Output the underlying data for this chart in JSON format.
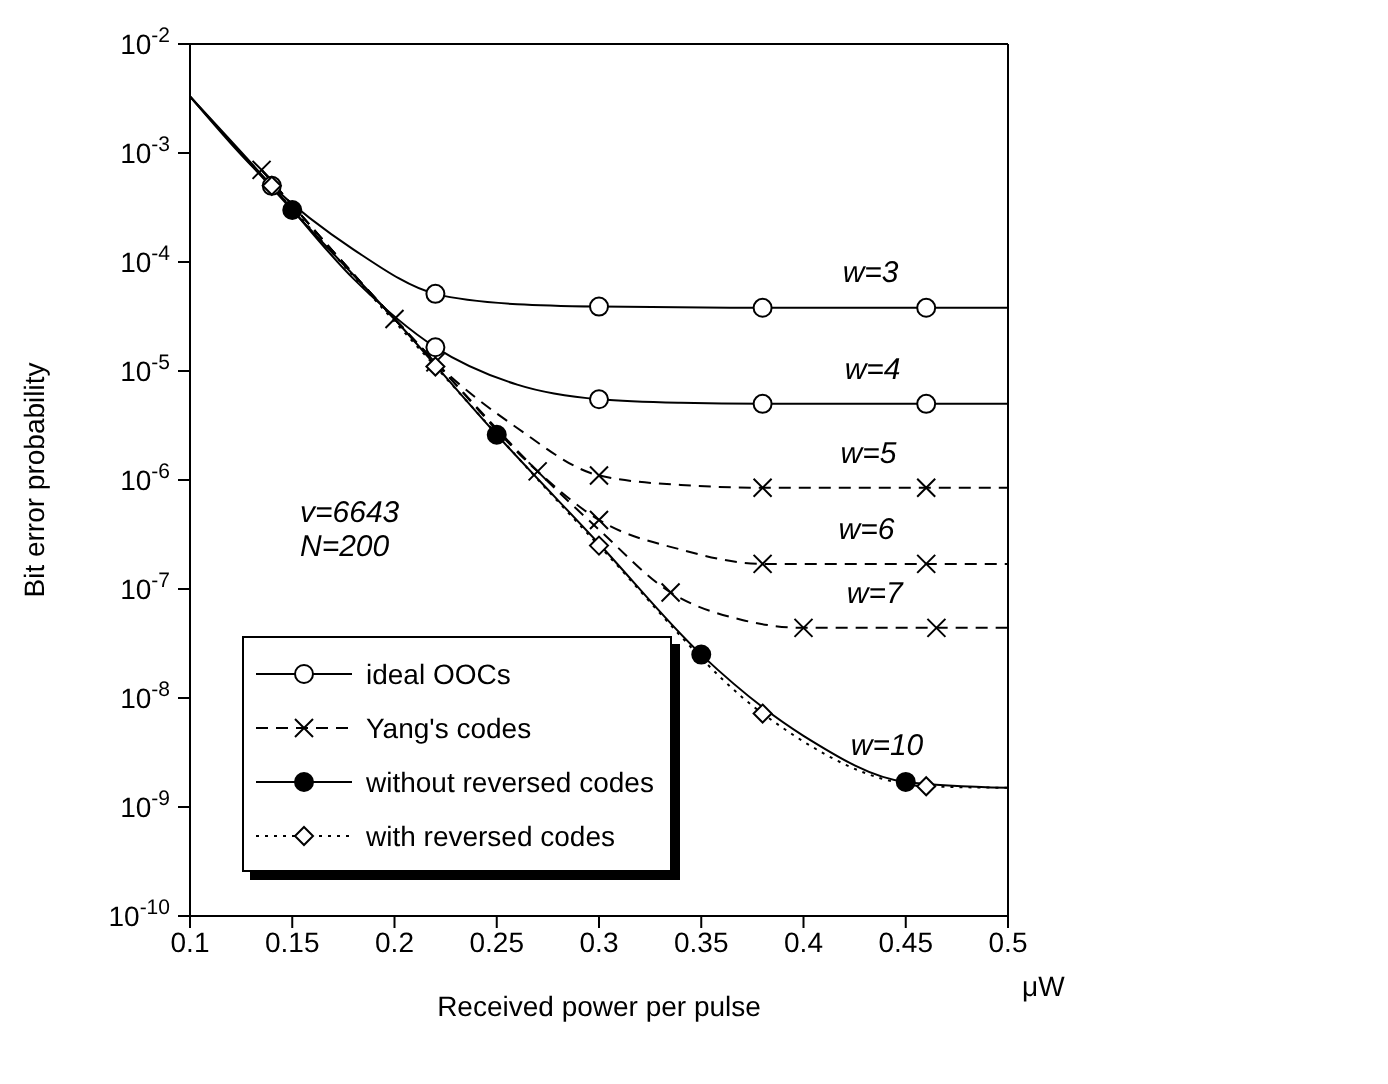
{
  "chart_data": {
    "type": "line",
    "xlabel": "Received power per pulse",
    "ylabel": "Bit error probability",
    "xlim": [
      0.1,
      0.5
    ],
    "xticks": [
      0.1,
      0.15,
      0.2,
      0.25,
      0.3,
      0.35,
      0.4,
      0.45,
      0.5
    ],
    "ylim": [
      1e-10,
      0.01
    ],
    "yticks": [
      {
        "value": 0.01,
        "label": "10$^{-2}$"
      },
      {
        "value": 0.001,
        "label": "10$^{-3}$"
      },
      {
        "value": 0.0001,
        "label": "10$^{-4}$"
      },
      {
        "value": 1e-05,
        "label": "10$^{-5}$"
      },
      {
        "value": 1e-06,
        "label": "10$^{-6}$"
      },
      {
        "value": 1e-07,
        "label": "10$^{-7}$"
      },
      {
        "value": 1e-08,
        "label": "10$^{-8}$"
      },
      {
        "value": 1e-09,
        "label": "10$^{-9}$"
      },
      {
        "value": 1e-10,
        "label": "10$^{-10}$"
      }
    ],
    "log": "y",
    "grid": false,
    "legend": "bottom left",
    "series": [
      {
        "name": "ideal OOCs",
        "color": "#000000",
        "line_style": "solid",
        "x": [
          0.1,
          0.14,
          0.18,
          0.22,
          0.26,
          0.3,
          0.38,
          0.46,
          0.5
        ],
        "values": [
          0.0033,
          0.0005,
          0.00013,
          5.1e-05,
          4.1e-05,
          3.9e-05,
          3.8e-05,
          3.8e-05,
          3.8e-05
        ]
      },
      {
        "color": "#000000",
        "line_style": "solid",
        "x": [
          0.1,
          0.14,
          0.18,
          0.22,
          0.26,
          0.3,
          0.34,
          0.38,
          0.46,
          0.5
        ],
        "values": [
          0.0033,
          0.0005,
          7e-05,
          1.65e-05,
          7.5e-06,
          5.5e-06,
          5.1e-06,
          5e-06,
          5e-06,
          5e-06
        ]
      },
      {
        "name": "Yang's codes",
        "color": "#000000",
        "line_style": "dashed",
        "x": [
          0.135,
          0.2,
          0.22,
          0.26,
          0.3,
          0.34,
          0.38,
          0.46,
          0.5
        ],
        "values": [
          0.0007,
          3e-05,
          1.2e-05,
          3e-06,
          1.1e-06,
          9e-07,
          8.5e-07,
          8.5e-07,
          8.5e-07
        ]
      },
      {
        "color": "#000000",
        "line_style": "dashed",
        "x": [
          0.135,
          0.2,
          0.22,
          0.27,
          0.3,
          0.34,
          0.38,
          0.46,
          0.5
        ],
        "values": [
          0.0007,
          3e-05,
          1.2e-05,
          1.2e-06,
          4.3e-07,
          2.3e-07,
          1.7e-07,
          1.7e-07,
          1.7e-07
        ]
      },
      {
        "color": "#000000",
        "line_style": "dashed",
        "x": [
          0.135,
          0.2,
          0.22,
          0.27,
          0.3,
          0.335,
          0.37,
          0.4,
          0.465,
          0.5
        ],
        "values": [
          0.0007,
          3e-05,
          1.2e-05,
          1.2e-06,
          3.5e-07,
          9.3e-08,
          5.2e-08,
          4.4e-08,
          4.4e-08,
          4.4e-08
        ]
      },
      {
        "name": "without reversed codes",
        "color": "#000000",
        "line_style": "solid",
        "x": [
          0.1,
          0.15,
          0.2,
          0.25,
          0.3,
          0.35,
          0.4,
          0.45,
          0.5
        ],
        "values": [
          0.0033,
          0.0003,
          3e-05,
          2.6e-06,
          2.6e-07,
          2.5e-08,
          4.5e-09,
          1.7e-09,
          1.5e-09
        ]
      },
      {
        "name": "with reversed codes",
        "color": "#000000",
        "line_style": "dotted",
        "x": [
          0.14,
          0.22,
          0.3,
          0.38,
          0.46,
          0.5
        ],
        "values": [
          0.0005,
          1.1e-05,
          2.5e-07,
          7.2e-09,
          1.55e-09,
          1.5e-09
        ]
      },
      {
        "type": "scatter",
        "color": "#000000",
        "marker": "circle",
        "x": [
          0.14,
          0.22,
          0.3,
          0.38,
          0.46,
          0.22,
          0.3,
          0.38,
          0.46
        ],
        "values": [
          0.0005,
          5.1e-05,
          3.9e-05,
          3.8e-05,
          3.8e-05,
          1.65e-05,
          5.5e-06,
          5e-06,
          5e-06
        ]
      },
      {
        "type": "scatter",
        "color": "#000000",
        "marker": "cross",
        "x": [
          0.135,
          0.2,
          0.22,
          0.27,
          0.3,
          0.3,
          0.335,
          0.38,
          0.38,
          0.4,
          0.46,
          0.46,
          0.465
        ],
        "values": [
          0.0007,
          3e-05,
          1.2e-05,
          1.2e-06,
          1.1e-06,
          4.3e-07,
          9.3e-08,
          8.5e-07,
          1.7e-07,
          4.4e-08,
          8.5e-07,
          1.7e-07,
          4.4e-08
        ]
      },
      {
        "type": "scatter",
        "color": "#000000",
        "marker": "filled_circle",
        "x": [
          0.15,
          0.25,
          0.35,
          0.45
        ],
        "values": [
          0.0003,
          2.6e-06,
          2.5e-08,
          1.7e-09
        ]
      },
      {
        "type": "scatter",
        "color": "#000000",
        "marker": "diamond",
        "x": [
          0.14,
          0.22,
          0.3,
          0.38,
          0.46
        ],
        "values": [
          0.0005,
          1.1e-05,
          2.5e-07,
          7.2e-09,
          1.55e-09
        ]
      }
    ],
    "annotations": [
      {
        "text": "w=3",
        "x": 0.432,
        "y": 3.8e-05
      },
      {
        "text": "w=4",
        "x": 0.433,
        "y": 5e-06
      },
      {
        "text": "w=5",
        "x": 0.431,
        "y": 8.5e-07
      },
      {
        "text": "w=6",
        "x": 0.43,
        "y": 1.7e-07
      },
      {
        "text": "w=7",
        "x": 0.434,
        "y": 4.4e-08
      },
      {
        "text": "w=10",
        "x": 0.44,
        "y": 1.8e-09
      },
      "v=6643",
      "N=200",
      "μW"
    ]
  }
}
